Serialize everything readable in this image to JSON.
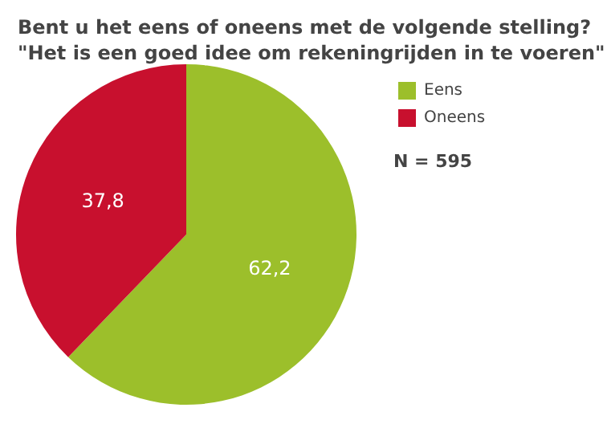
{
  "chart_data": {
    "type": "pie",
    "title": "Bent u het eens of oneens met de volgende stelling?\n\"Het is een goed idee om rekeningrijden in te voeren\"",
    "categories": [
      "Eens",
      "Oneens"
    ],
    "values": [
      62.2,
      37.8
    ],
    "colors": [
      "#9cbf2b",
      "#c8102e"
    ],
    "value_labels": [
      "62,2",
      "37,8"
    ],
    "legend": "right",
    "annotations": [
      "N = 595"
    ]
  }
}
